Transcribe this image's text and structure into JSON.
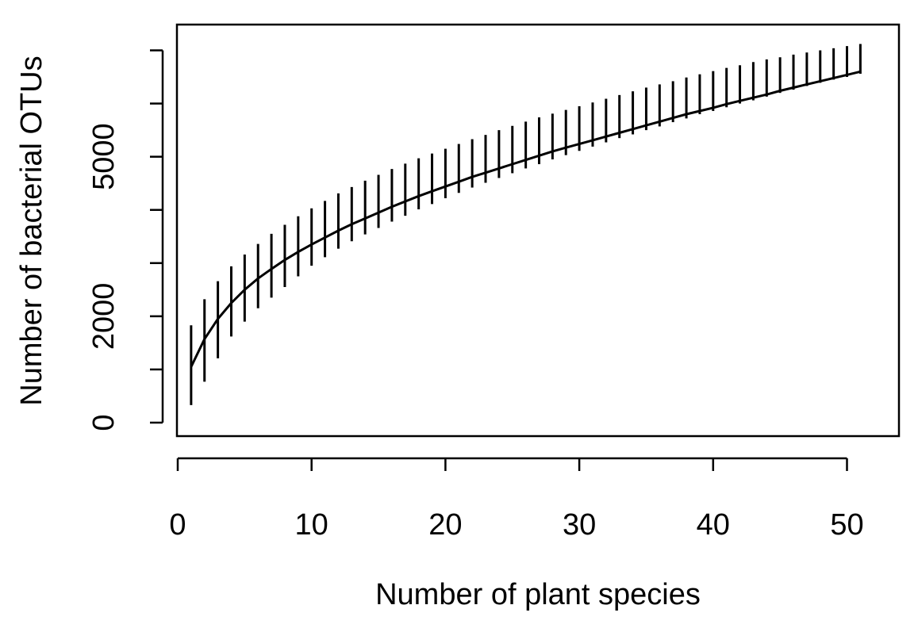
{
  "chart_data": {
    "type": "line",
    "title": "",
    "xlabel": "Number of plant species",
    "ylabel": "Number of bacterial OTUs",
    "xlim": [
      0,
      53
    ],
    "ylim": [
      -100,
      7000
    ],
    "x_ticks": [
      0,
      10,
      20,
      30,
      40,
      50
    ],
    "x_tick_labels": [
      "0",
      "10",
      "20",
      "30",
      "40",
      "50"
    ],
    "y_ticks": [
      0,
      1000,
      2000,
      3000,
      4000,
      5000,
      6000,
      7000
    ],
    "y_tick_labels": [
      "0",
      "",
      "2000",
      "",
      "",
      "5000",
      "",
      ""
    ],
    "grid": false,
    "legend": false,
    "line_color": "#000000",
    "series": [
      {
        "x": [
          1,
          2,
          3,
          4,
          5,
          6,
          7,
          8,
          9,
          10,
          11,
          12,
          13,
          14,
          15,
          16,
          17,
          18,
          19,
          20,
          21,
          22,
          23,
          24,
          25,
          26,
          27,
          28,
          29,
          30,
          31,
          32,
          33,
          34,
          35,
          36,
          37,
          38,
          39,
          40,
          41,
          42,
          43,
          44,
          45,
          46,
          47,
          48,
          49,
          50,
          51
        ],
        "y": [
          1050,
          1570,
          1950,
          2250,
          2500,
          2710,
          2890,
          3060,
          3210,
          3350,
          3480,
          3610,
          3730,
          3840,
          3950,
          4060,
          4160,
          4260,
          4350,
          4440,
          4530,
          4620,
          4700,
          4780,
          4860,
          4940,
          5020,
          5100,
          5170,
          5240,
          5310,
          5380,
          5450,
          5520,
          5590,
          5660,
          5730,
          5800,
          5860,
          5920,
          5990,
          6050,
          6110,
          6170,
          6240,
          6300,
          6360,
          6420,
          6480,
          6540,
          6600
        ],
        "err_low": [
          330,
          770,
          1210,
          1620,
          1900,
          2150,
          2350,
          2550,
          2750,
          2950,
          3110,
          3270,
          3410,
          3540,
          3660,
          3780,
          3890,
          4010,
          4110,
          4220,
          4320,
          4420,
          4510,
          4600,
          4690,
          4780,
          4860,
          4950,
          5030,
          5110,
          5190,
          5270,
          5350,
          5420,
          5500,
          5570,
          5650,
          5720,
          5800,
          5860,
          5930,
          6000,
          6060,
          6130,
          6200,
          6260,
          6330,
          6390,
          6450,
          6500,
          6560
        ],
        "err_high": [
          1830,
          2320,
          2660,
          2940,
          3160,
          3360,
          3550,
          3720,
          3880,
          4030,
          4170,
          4310,
          4430,
          4550,
          4660,
          4770,
          4870,
          4970,
          5060,
          5150,
          5240,
          5330,
          5410,
          5500,
          5580,
          5660,
          5740,
          5810,
          5880,
          5950,
          6020,
          6090,
          6160,
          6230,
          6300,
          6360,
          6420,
          6490,
          6550,
          6610,
          6670,
          6720,
          6780,
          6830,
          6870,
          6920,
          6960,
          7000,
          7040,
          7080,
          7120
        ]
      }
    ]
  }
}
